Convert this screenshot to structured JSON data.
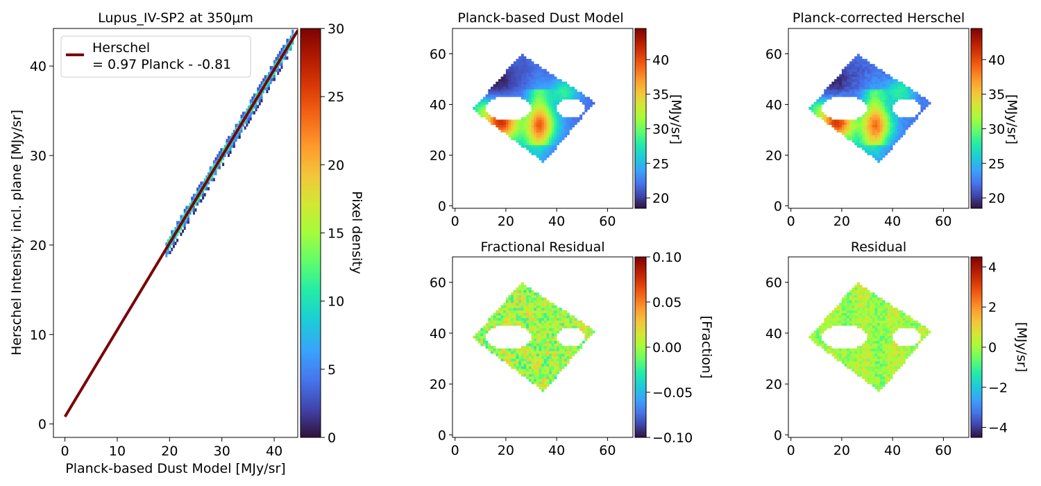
{
  "chart_data": [
    {
      "type": "heatmap",
      "title": "Lupus_IV-SP2 at 350μm",
      "xlabel": "Planck-based Dust Model [MJy/sr]",
      "ylabel": "Herschel Intensity incl. plane [MJy/sr]",
      "xlim": [
        -2.2,
        44.5
      ],
      "ylim": [
        -1.5,
        44.2
      ],
      "x_ticks": [
        0,
        10,
        20,
        30,
        40
      ],
      "y_ticks": [
        0,
        10,
        20,
        30,
        40
      ],
      "legend": {
        "label_line1": "Herschel",
        "label_line2": "= 0.97 Planck - -0.81",
        "color": "#7a0403",
        "placement": "upper-left"
      },
      "fit": {
        "slope": 0.97,
        "intercept": 0.81,
        "x_range": [
          0,
          44.5
        ],
        "color": "#7a0403"
      },
      "density_band": {
        "x_range": [
          19.2,
          43.6
        ],
        "note": "2D histogram of pixel pairs along the fit line"
      },
      "colorbar": {
        "label": "Pixel density",
        "min": 0,
        "max": 30,
        "ticks": [
          0,
          5,
          10,
          15,
          20,
          25,
          30
        ],
        "cmap": "turbo"
      }
    },
    {
      "type": "heatmap",
      "title": "Planck-based Dust Model",
      "xlim": [
        -1,
        70
      ],
      "ylim": [
        -1,
        70
      ],
      "x_ticks": [
        0,
        20,
        40,
        60
      ],
      "y_ticks": [
        0,
        20,
        40,
        60
      ],
      "colorbar": {
        "label": "[MJy/sr]",
        "min": 18.5,
        "max": 44.5,
        "ticks": [
          20,
          25,
          30,
          35,
          40
        ],
        "tick_labels": [
          "20",
          "25",
          "30",
          "35",
          "40"
        ],
        "cmap": "turbo"
      }
    },
    {
      "type": "heatmap",
      "title": "Planck-corrected Herschel",
      "xlim": [
        -1,
        70
      ],
      "ylim": [
        -1,
        70
      ],
      "x_ticks": [
        0,
        20,
        40,
        60
      ],
      "y_ticks": [
        0,
        20,
        40,
        60
      ],
      "colorbar": {
        "label": "[MJy/sr]",
        "min": 18.5,
        "max": 44.5,
        "ticks": [
          20,
          25,
          30,
          35,
          40
        ],
        "tick_labels": [
          "20",
          "25",
          "30",
          "35",
          "40"
        ],
        "cmap": "turbo"
      }
    },
    {
      "type": "heatmap",
      "title": "Fractional Residual",
      "xlim": [
        -1,
        70
      ],
      "ylim": [
        -1,
        70
      ],
      "x_ticks": [
        0,
        20,
        40,
        60
      ],
      "y_ticks": [
        0,
        20,
        40,
        60
      ],
      "colorbar": {
        "label": "[Fraction]",
        "min": -0.1,
        "max": 0.1,
        "ticks": [
          -0.1,
          -0.05,
          0,
          0.05,
          0.1
        ],
        "tick_labels": [
          "−0.10",
          "−0.05",
          "0.00",
          "0.05",
          "0.10"
        ],
        "cmap": "turbo"
      }
    },
    {
      "type": "heatmap",
      "title": "Residual",
      "xlim": [
        -1,
        70
      ],
      "ylim": [
        -1,
        70
      ],
      "x_ticks": [
        0,
        20,
        40,
        60
      ],
      "y_ticks": [
        0,
        20,
        40,
        60
      ],
      "colorbar": {
        "label": "[MJy/sr]",
        "min": -4.5,
        "max": 4.5,
        "ticks": [
          -4,
          -2,
          0,
          2,
          4
        ],
        "tick_labels": [
          "−4",
          "−2",
          "0",
          "2",
          "4"
        ],
        "cmap": "turbo"
      }
    }
  ]
}
